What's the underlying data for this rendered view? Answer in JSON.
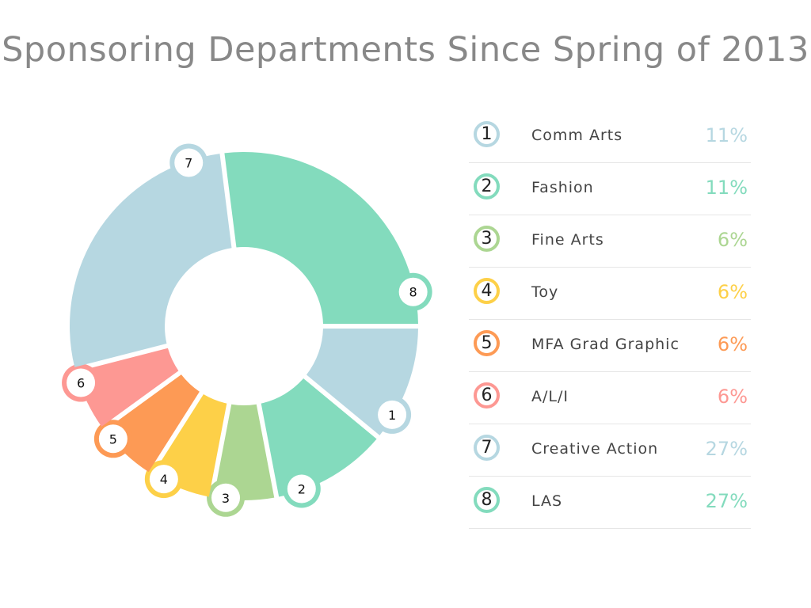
{
  "title": "Sponsoring Departments Since Spring of 2013",
  "chart_data": {
    "type": "pie",
    "title": "Sponsoring Departments Since Spring of 2013",
    "slices": [
      {
        "id": "1",
        "label": "Comm Arts",
        "value": 11,
        "pct_label": "11%",
        "color": "#b6d7e1"
      },
      {
        "id": "2",
        "label": "Fashion",
        "value": 11,
        "pct_label": "11%",
        "color": "#83dbbd"
      },
      {
        "id": "3",
        "label": "Fine Arts",
        "value": 6,
        "pct_label": "6%",
        "color": "#acd692"
      },
      {
        "id": "4",
        "label": "Toy",
        "value": 6,
        "pct_label": "6%",
        "color": "#fdd048"
      },
      {
        "id": "5",
        "label": "MFA Grad Graphic",
        "value": 6,
        "pct_label": "6%",
        "color": "#fd9a55"
      },
      {
        "id": "6",
        "label": "A/L/I",
        "value": 6,
        "pct_label": "6%",
        "color": "#fd9893"
      },
      {
        "id": "7",
        "label": "Creative Action",
        "value": 27,
        "pct_label": "27%",
        "color": "#b6d7e1"
      },
      {
        "id": "8",
        "label": "LAS",
        "value": 27,
        "pct_label": "27%",
        "color": "#83dbbd"
      }
    ],
    "legend": "right"
  }
}
